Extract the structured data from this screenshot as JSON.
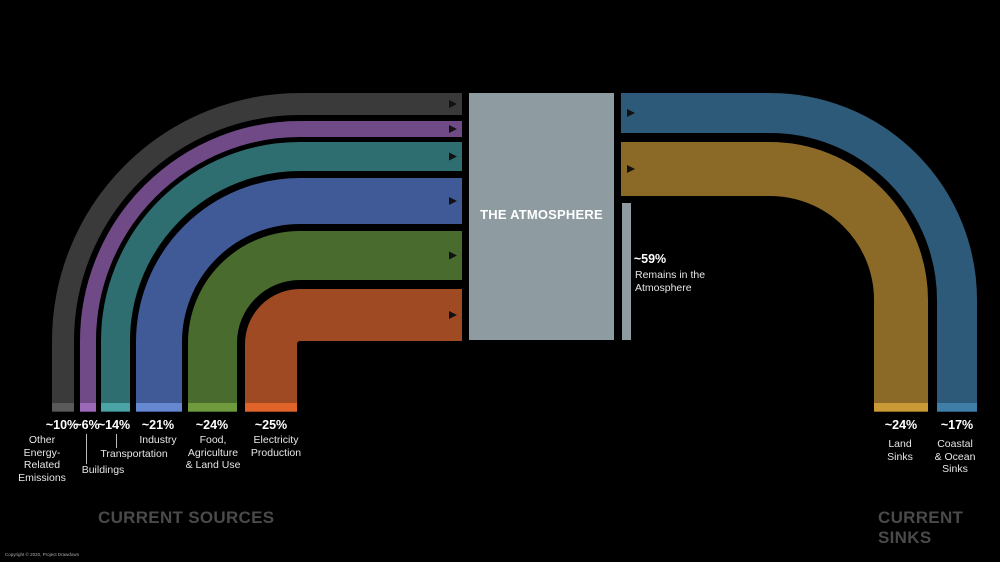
{
  "atmosphere": {
    "title": "THE ATMOSPHERE",
    "color": "#8e9ca2"
  },
  "remains": {
    "pct": "~59%",
    "label": "Remains in the\nAtmosphere"
  },
  "sections": {
    "sources_title": "CURRENT SOURCES",
    "sinks_title": "CURRENT SINKS"
  },
  "copyright": "Copyright © 2020, Project Drawdown",
  "sources": [
    {
      "id": "other",
      "pct": "~10%",
      "label": "Other\nEnergy-\nRelated\nEmissions",
      "color": "#3a3a3a",
      "swatch": "#5a5a5a",
      "share": 10
    },
    {
      "id": "buildings",
      "pct": "~6%",
      "label": "Buildings",
      "color": "#6f4a86",
      "swatch": "#9a6ab8",
      "share": 6
    },
    {
      "id": "transportation",
      "pct": "~14%",
      "label": "Transportation",
      "color": "#2e6e70",
      "swatch": "#4aa3a5",
      "share": 14
    },
    {
      "id": "industry",
      "pct": "~21%",
      "label": "Industry",
      "color": "#405a98",
      "swatch": "#6688d0",
      "share": 21
    },
    {
      "id": "food",
      "pct": "~24%",
      "label": "Food,\nAgriculture\n& Land Use",
      "color": "#4a6b2e",
      "swatch": "#6f9a3e",
      "share": 24
    },
    {
      "id": "electricity",
      "pct": "~25%",
      "label": "Electricity\nProduction",
      "color": "#a04a23",
      "swatch": "#e0642a",
      "share": 25
    }
  ],
  "sinks": [
    {
      "id": "land",
      "pct": "~24%",
      "label": "Land\nSinks",
      "color": "#8a6a26",
      "swatch": "#c99a36",
      "share": 24
    },
    {
      "id": "coastal",
      "pct": "~17%",
      "label": "Coastal\n& Ocean\nSinks",
      "color": "#2d5a78",
      "swatch": "#3f7ea6",
      "share": 17
    }
  ]
}
